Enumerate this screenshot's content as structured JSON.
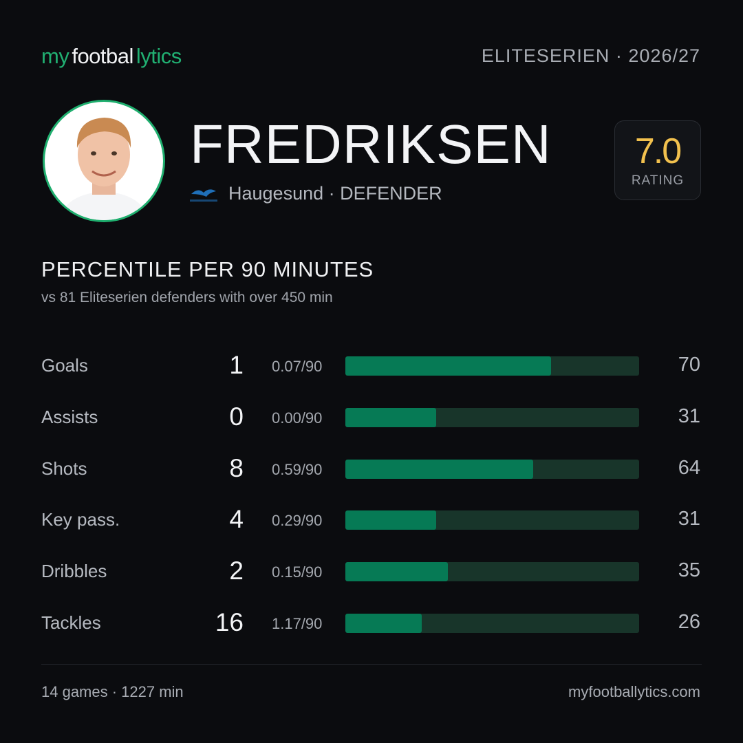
{
  "header": {
    "brand": [
      "my",
      "footbal",
      "lytics"
    ],
    "league": "ELITESERIEN · 2026/27"
  },
  "player": {
    "name": "FREDRIKSEN",
    "team": "Haugesund · DEFENDER",
    "rating": "7.0",
    "rating_label": "RATING"
  },
  "section": {
    "title": "PERCENTILE  PER 90 MINUTES",
    "subtitle": "vs 81 Eliteserien defenders with over 450 min"
  },
  "stats": [
    {
      "label": "Goals",
      "count": 1,
      "per90": "0.07/90",
      "percentile": 70
    },
    {
      "label": "Assists",
      "count": 0,
      "per90": "0.00/90",
      "percentile": 31
    },
    {
      "label": "Shots",
      "count": 8,
      "per90": "0.59/90",
      "percentile": 64
    },
    {
      "label": "Key pass.",
      "count": 4,
      "per90": "0.29/90",
      "percentile": 31
    },
    {
      "label": "Dribbles",
      "count": 2,
      "per90": "0.15/90",
      "percentile": 35
    },
    {
      "label": "Tackles",
      "count": 16,
      "per90": "1.17/90",
      "percentile": 26
    }
  ],
  "footer": {
    "summary": "14 games · 1227 min",
    "site": "myfootballytics.com"
  }
}
